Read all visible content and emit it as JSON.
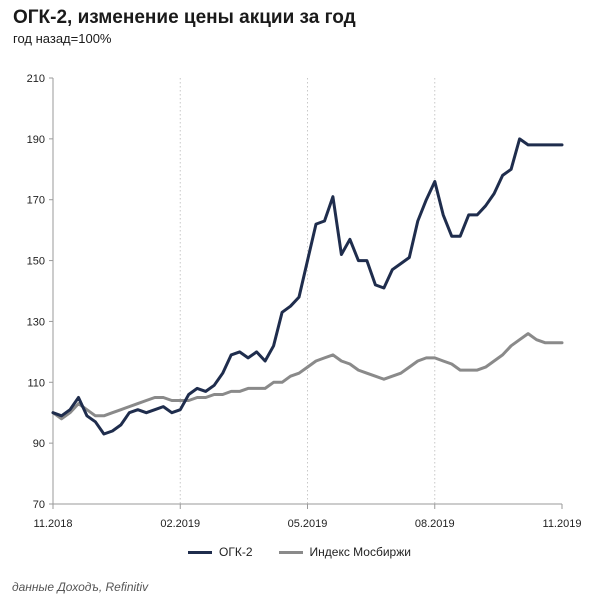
{
  "title": "ОГК-2, изменение цены акции за год",
  "subtitle": "год назад=100%",
  "source": "данные Доходъ, Refinitiv",
  "colors": {
    "series1": "#1f2d4d",
    "series2": "#8a8a8a",
    "grid": "#c8c8c8",
    "axis": "#9a9a9a"
  },
  "chart_data": {
    "type": "line",
    "title": "ОГК-2, изменение цены акции за год",
    "subtitle": "год назад=100%",
    "xlabel": "",
    "ylabel": "",
    "x_ticks": [
      "11.2018",
      "02.2019",
      "05.2019",
      "08.2019",
      "11.2019"
    ],
    "x_range": [
      0,
      12
    ],
    "ylim": [
      70,
      210
    ],
    "y_ticks": [
      70,
      90,
      110,
      130,
      150,
      170,
      190,
      210
    ],
    "grid": "vertical dotted at x ticks",
    "legend_position": "bottom",
    "series": [
      {
        "name": "ОГК-2",
        "x": [
          0,
          0.2,
          0.4,
          0.6,
          0.8,
          1.0,
          1.2,
          1.4,
          1.6,
          1.8,
          2.0,
          2.2,
          2.4,
          2.6,
          2.8,
          3.0,
          3.2,
          3.4,
          3.6,
          3.8,
          4.0,
          4.2,
          4.4,
          4.6,
          4.8,
          5.0,
          5.2,
          5.4,
          5.6,
          5.8,
          6.0,
          6.2,
          6.4,
          6.6,
          6.8,
          7.0,
          7.2,
          7.4,
          7.6,
          7.8,
          8.0,
          8.2,
          8.4,
          8.6,
          8.8,
          9.0,
          9.2,
          9.4,
          9.6,
          9.8,
          10.0,
          10.2,
          10.4,
          10.6,
          10.8,
          11.0,
          11.2,
          11.4,
          11.6,
          11.8,
          12.0
        ],
        "values": [
          100,
          99,
          101,
          105,
          99,
          97,
          93,
          94,
          96,
          100,
          101,
          100,
          101,
          102,
          100,
          101,
          106,
          108,
          107,
          109,
          113,
          119,
          120,
          118,
          120,
          117,
          122,
          133,
          135,
          138,
          150,
          162,
          163,
          171,
          152,
          157,
          150,
          150,
          142,
          141,
          147,
          149,
          151,
          163,
          170,
          176,
          165,
          158,
          158,
          165,
          165,
          168,
          172,
          178,
          180,
          190,
          188,
          188,
          188,
          188,
          188
        ]
      },
      {
        "name": "Индекс Мосбиржи",
        "x": [
          0,
          0.2,
          0.4,
          0.6,
          0.8,
          1.0,
          1.2,
          1.4,
          1.6,
          1.8,
          2.0,
          2.2,
          2.4,
          2.6,
          2.8,
          3.0,
          3.2,
          3.4,
          3.6,
          3.8,
          4.0,
          4.2,
          4.4,
          4.6,
          4.8,
          5.0,
          5.2,
          5.4,
          5.6,
          5.8,
          6.0,
          6.2,
          6.4,
          6.6,
          6.8,
          7.0,
          7.2,
          7.4,
          7.6,
          7.8,
          8.0,
          8.2,
          8.4,
          8.6,
          8.8,
          9.0,
          9.2,
          9.4,
          9.6,
          9.8,
          10.0,
          10.2,
          10.4,
          10.6,
          10.8,
          11.0,
          11.2,
          11.4,
          11.6,
          11.8,
          12.0
        ],
        "values": [
          100,
          98,
          100,
          103,
          101,
          99,
          99,
          100,
          101,
          102,
          103,
          104,
          105,
          105,
          104,
          104,
          104,
          105,
          105,
          106,
          106,
          107,
          107,
          108,
          108,
          108,
          110,
          110,
          112,
          113,
          115,
          117,
          118,
          119,
          117,
          116,
          114,
          113,
          112,
          111,
          112,
          113,
          115,
          117,
          118,
          118,
          117,
          116,
          114,
          114,
          114,
          115,
          117,
          119,
          122,
          124,
          126,
          124,
          123,
          123,
          123
        ]
      }
    ]
  }
}
